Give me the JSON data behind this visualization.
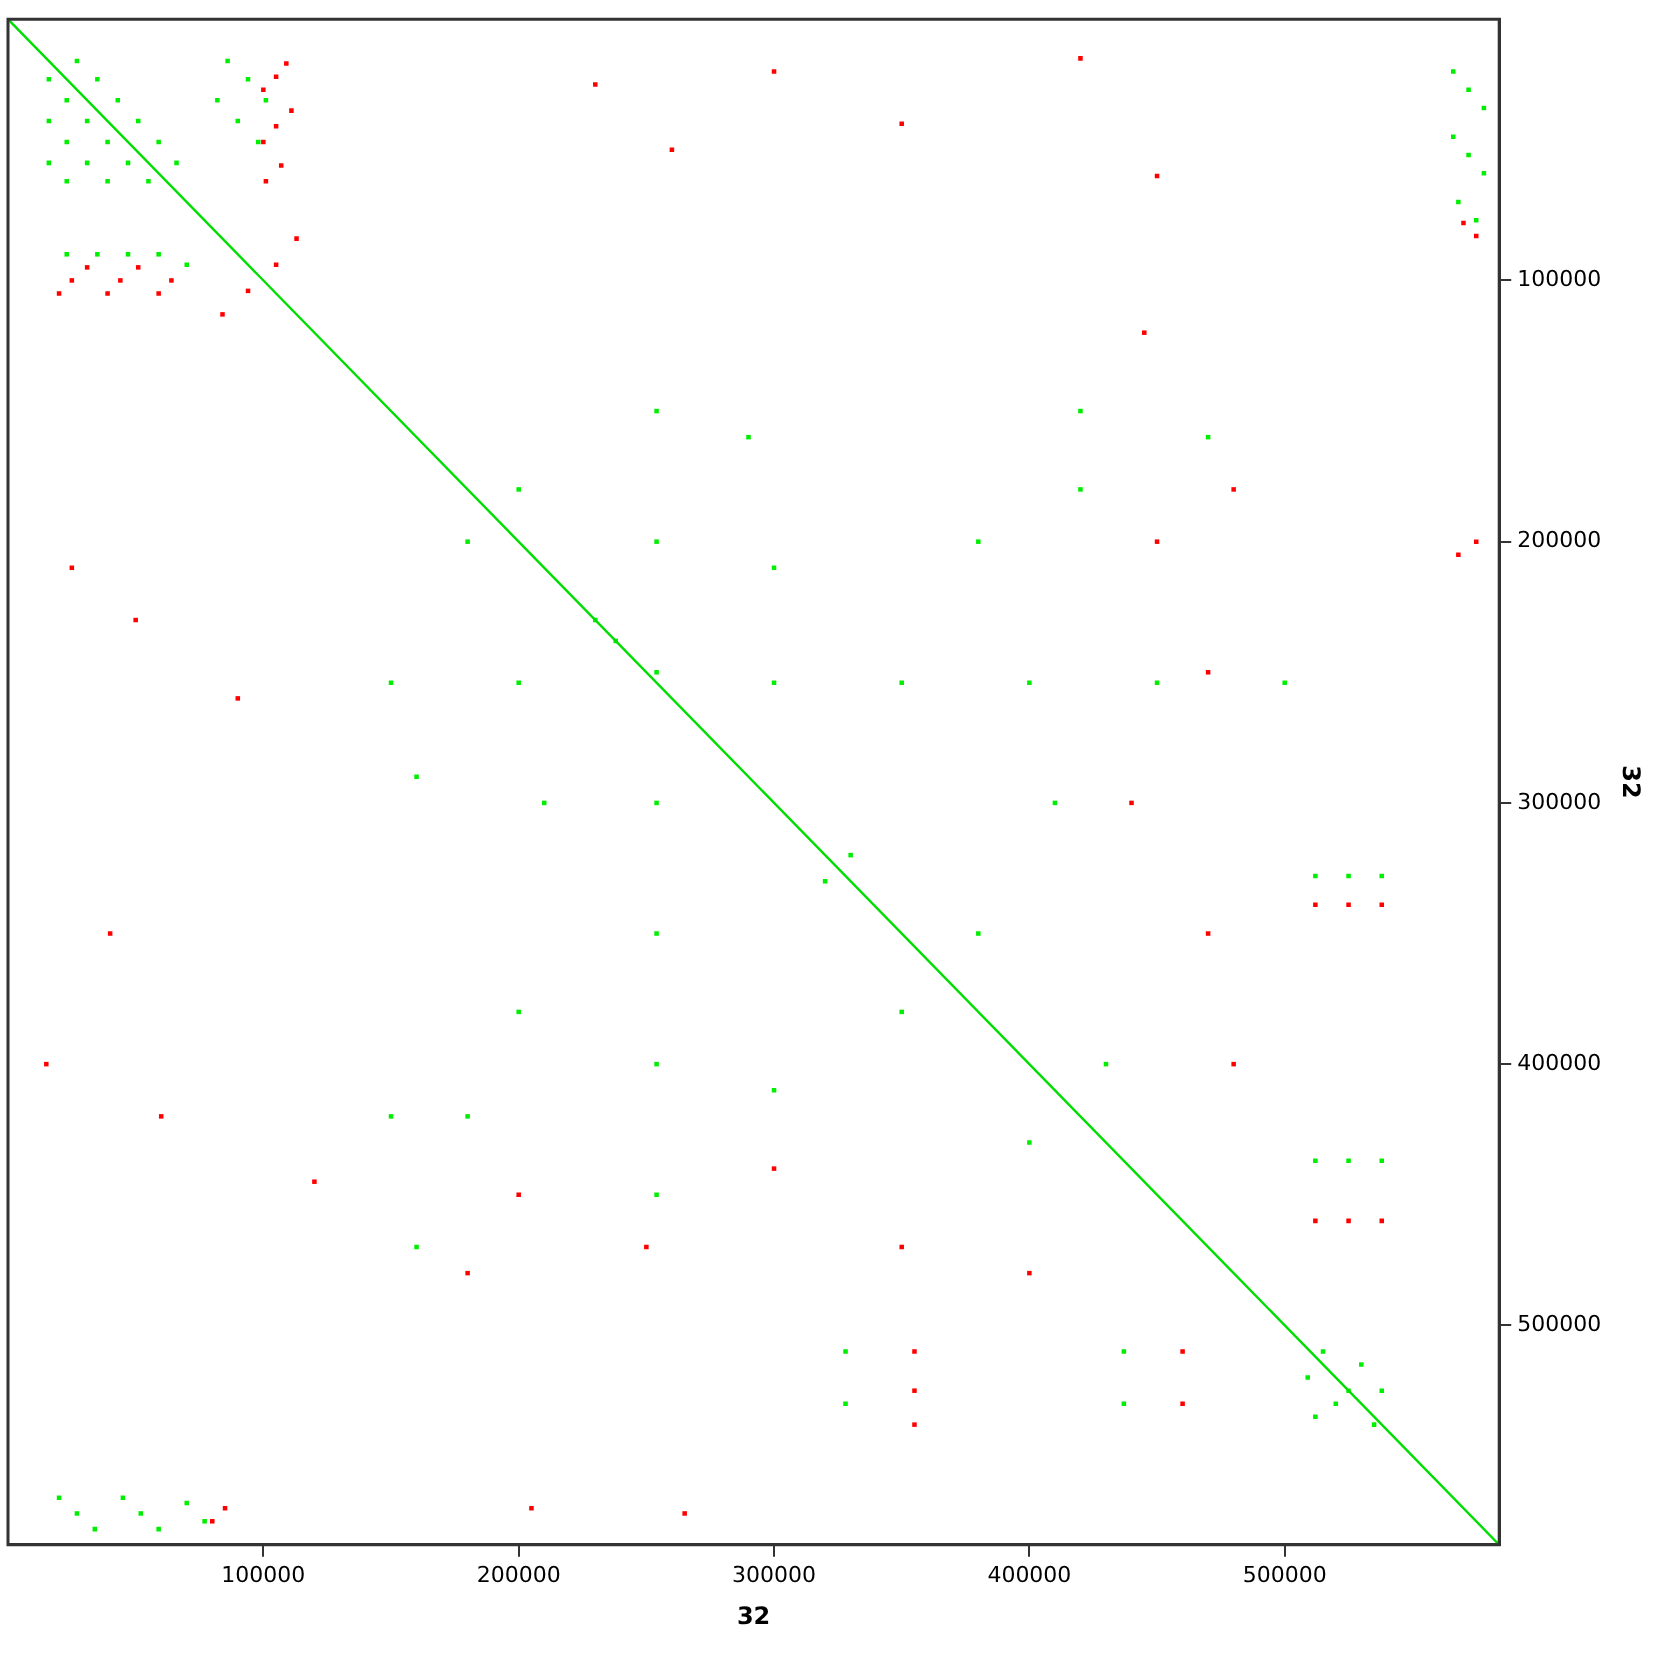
{
  "chart_data": {
    "type": "scatter",
    "xlabel": "32",
    "ylabel": "32",
    "xlim": [
      0,
      584000
    ],
    "ylim": [
      584000,
      0
    ],
    "xticks": [
      100000,
      200000,
      300000,
      400000,
      500000
    ],
    "yticks": [
      100000,
      200000,
      300000,
      400000,
      500000
    ],
    "grid": false,
    "legend": false,
    "marker": "square",
    "series": [
      {
        "type": "line",
        "marker": "none",
        "color": "#00dd00",
        "x": [
          0,
          584000
        ],
        "values": [
          0,
          584000
        ]
      },
      {
        "color": "#00ee00",
        "x": [
          16000,
          23000,
          31000,
          39000,
          47000,
          55000,
          27000,
          35000,
          43000,
          51000,
          59000,
          66000,
          16000,
          23000,
          31000,
          39000,
          16000,
          23000,
          86000,
          94000,
          101000,
          82000,
          90000,
          98000,
          23000,
          35000,
          47000,
          59000,
          70000,
          566000,
          572000,
          578000,
          566000,
          572000,
          578000,
          568000,
          575000,
          20000,
          27000,
          34000,
          45000,
          52000,
          59000,
          70000,
          77000,
          254000,
          254000,
          254000,
          254000,
          254000,
          254000,
          254000,
          150000,
          200000,
          300000,
          350000,
          400000,
          450000,
          500000,
          180000,
          200000,
          300000,
          210000,
          320000,
          330000,
          380000,
          200000,
          420000,
          180000,
          410000,
          300000,
          350000,
          380000,
          150000,
          420000,
          230000,
          238000,
          290000,
          160000,
          400000,
          430000,
          470000,
          160000,
          328000,
          328000,
          512000,
          525000,
          538000,
          509000,
          515000,
          520000,
          530000,
          538000,
          512000,
          525000,
          535000,
          512000,
          525000,
          538000,
          437000,
          437000
        ],
        "values": [
          23000,
          31000,
          39000,
          47000,
          55000,
          62000,
          16000,
          23000,
          31000,
          39000,
          47000,
          55000,
          39000,
          47000,
          55000,
          62000,
          55000,
          62000,
          16000,
          23000,
          31000,
          31000,
          39000,
          47000,
          90000,
          90000,
          90000,
          90000,
          94000,
          20000,
          27000,
          34000,
          45000,
          52000,
          59000,
          70000,
          77000,
          566000,
          572000,
          578000,
          566000,
          572000,
          578000,
          568000,
          575000,
          150000,
          200000,
          250000,
          300000,
          350000,
          400000,
          450000,
          254000,
          254000,
          254000,
          254000,
          254000,
          254000,
          254000,
          200000,
          180000,
          210000,
          300000,
          330000,
          320000,
          200000,
          380000,
          180000,
          420000,
          300000,
          410000,
          380000,
          350000,
          420000,
          150000,
          230000,
          238000,
          160000,
          290000,
          430000,
          400000,
          160000,
          470000,
          510000,
          530000,
          328000,
          328000,
          328000,
          520000,
          510000,
          530000,
          515000,
          525000,
          535000,
          525000,
          538000,
          437000,
          437000,
          437000,
          510000,
          530000
        ]
      },
      {
        "color": "#ff0000",
        "x": [
          100000,
          105000,
          109000,
          100000,
          105000,
          111000,
          101000,
          107000,
          20000,
          25000,
          31000,
          39000,
          44000,
          51000,
          59000,
          64000,
          84000,
          94000,
          105000,
          113000,
          570000,
          575000,
          568000,
          575000,
          80000,
          85000,
          205000,
          265000,
          25000,
          50000,
          90000,
          230000,
          260000,
          300000,
          350000,
          420000,
          450000,
          40000,
          60000,
          15000,
          180000,
          480000,
          250000,
          470000,
          400000,
          480000,
          350000,
          470000,
          445000,
          120000,
          200000,
          450000,
          300000,
          440000,
          355000,
          355000,
          355000,
          460000,
          460000,
          512000,
          525000,
          538000,
          512000,
          525000,
          538000
        ],
        "values": [
          27000,
          22000,
          17000,
          47000,
          41000,
          35000,
          62000,
          56000,
          105000,
          100000,
          95000,
          105000,
          100000,
          95000,
          105000,
          100000,
          113000,
          104000,
          94000,
          84000,
          78000,
          83000,
          205000,
          200000,
          575000,
          570000,
          570000,
          572000,
          210000,
          230000,
          260000,
          25000,
          50000,
          20000,
          40000,
          15000,
          60000,
          350000,
          420000,
          400000,
          480000,
          180000,
          470000,
          250000,
          480000,
          400000,
          470000,
          350000,
          120000,
          445000,
          450000,
          200000,
          440000,
          300000,
          510000,
          525000,
          538000,
          510000,
          530000,
          339000,
          339000,
          339000,
          460000,
          460000,
          460000
        ]
      }
    ]
  }
}
